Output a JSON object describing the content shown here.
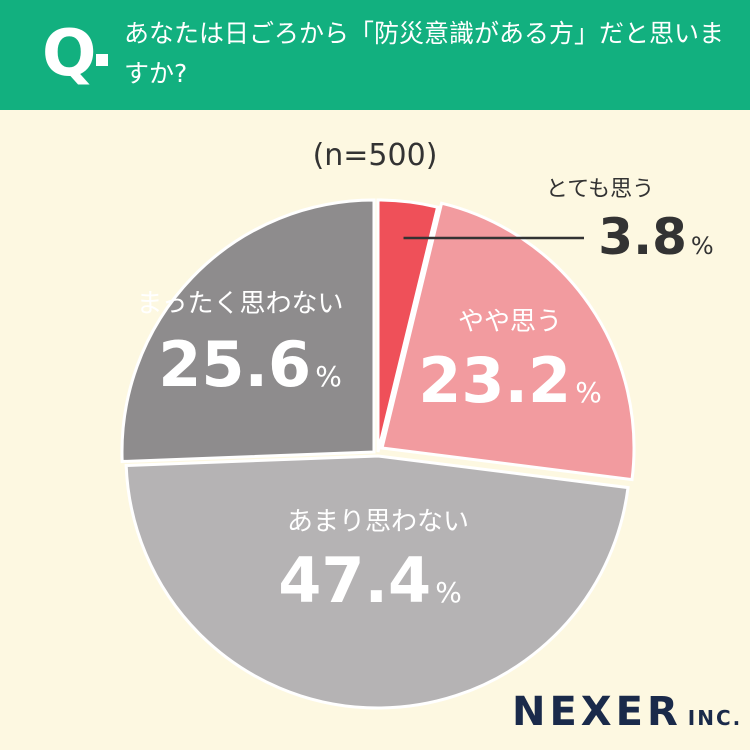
{
  "header": {
    "q_label": "Q",
    "question": "あなたは日ごろから「防災意識がある方」だと思いますか?"
  },
  "sample_size": "(n=500)",
  "chart_data": {
    "type": "pie",
    "title": "",
    "slices": [
      {
        "label": "とても思う",
        "value": 3.8,
        "display": "3.8",
        "unit": "%",
        "color": "#ef5059"
      },
      {
        "label": "やや思う",
        "value": 23.2,
        "display": "23.2",
        "unit": "%",
        "color": "#f29b9f"
      },
      {
        "label": "あまり思わない",
        "value": 47.4,
        "display": "47.4",
        "unit": "%",
        "color": "#b5b3b4"
      },
      {
        "label": "まったく思わない",
        "value": 25.6,
        "display": "25.6",
        "unit": "%",
        "color": "#8e8c8d"
      }
    ]
  },
  "logo": {
    "name": "NEXER",
    "suffix": "INC."
  },
  "colors": {
    "header_bg": "#12b07f",
    "page_bg": "#fdf8e1",
    "logo": "#1a2a4a"
  }
}
